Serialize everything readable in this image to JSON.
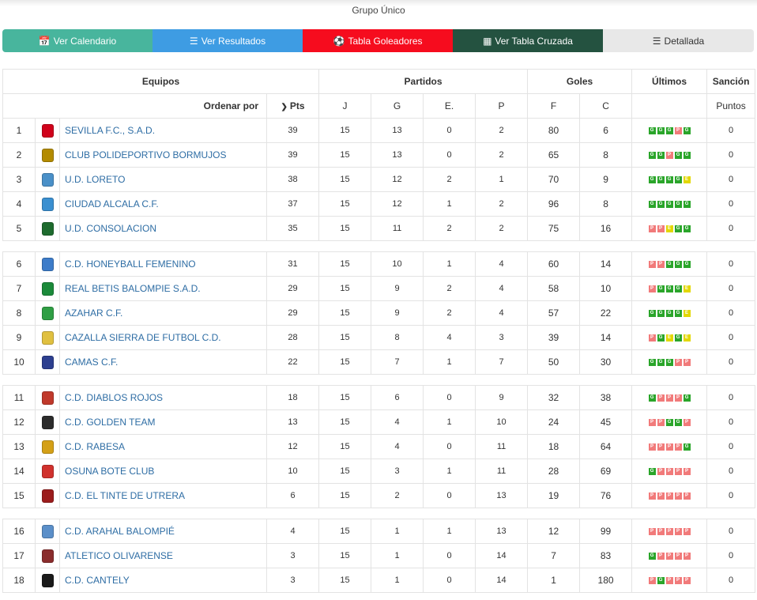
{
  "group_title": "Grupo Único",
  "tabs": [
    {
      "label": "Ver Calendario",
      "icon": "calendar-icon"
    },
    {
      "label": "Ver Resultados",
      "icon": "list-icon"
    },
    {
      "label": "Tabla Goleadores",
      "icon": "soccer-ball-icon"
    },
    {
      "label": "Ver Tabla Cruzada",
      "icon": "table-icon"
    },
    {
      "label": "Detallada",
      "icon": "detail-list-icon"
    }
  ],
  "headers": {
    "equipos": "Equipos",
    "partidos": "Partidos",
    "goles": "Goles",
    "ultimos": "Últimos",
    "sancion": "Sanción",
    "ordenar_por": "Ordenar por",
    "pts": "Pts",
    "j": "J",
    "g": "G",
    "e": "E.",
    "p": "P",
    "f": "F",
    "c": "C",
    "puntos": "Puntos"
  },
  "colors": {
    "win": "#2aa52a",
    "loss": "#f17a7a",
    "draw": "#e3d700",
    "link": "#2e6da4"
  },
  "groups": [
    [
      {
        "pos": "1",
        "team": "SEVILLA F.C., S.A.D.",
        "crest_color": "#d0021b",
        "pts": "39",
        "j": "15",
        "g": "13",
        "e": "0",
        "p": "2",
        "f": "80",
        "c": "6",
        "last": [
          "G",
          "G",
          "G",
          "P",
          "G"
        ],
        "sancion": "0"
      },
      {
        "pos": "2",
        "team": "CLUB POLIDEPORTIVO BORMUJOS",
        "crest_color": "#b38b00",
        "pts": "39",
        "j": "15",
        "g": "13",
        "e": "0",
        "p": "2",
        "f": "65",
        "c": "8",
        "last": [
          "G",
          "G",
          "P",
          "G",
          "G"
        ],
        "sancion": "0"
      },
      {
        "pos": "3",
        "team": "U.D. LORETO",
        "crest_color": "#4a90c8",
        "pts": "38",
        "j": "15",
        "g": "12",
        "e": "2",
        "p": "1",
        "f": "70",
        "c": "9",
        "last": [
          "G",
          "G",
          "G",
          "G",
          "E"
        ],
        "sancion": "0"
      },
      {
        "pos": "4",
        "team": "CIUDAD ALCALA C.F.",
        "crest_color": "#3a8fd0",
        "pts": "37",
        "j": "15",
        "g": "12",
        "e": "1",
        "p": "2",
        "f": "96",
        "c": "8",
        "last": [
          "G",
          "G",
          "G",
          "G",
          "G"
        ],
        "sancion": "0"
      },
      {
        "pos": "5",
        "team": "U.D. CONSOLACION",
        "crest_color": "#1e6b2e",
        "pts": "35",
        "j": "15",
        "g": "11",
        "e": "2",
        "p": "2",
        "f": "75",
        "c": "16",
        "last": [
          "P",
          "P",
          "E",
          "G",
          "G"
        ],
        "sancion": "0"
      }
    ],
    [
      {
        "pos": "6",
        "team": "C.D. HONEYBALL FEMENINO",
        "crest_color": "#3d7cc9",
        "pts": "31",
        "j": "15",
        "g": "10",
        "e": "1",
        "p": "4",
        "f": "60",
        "c": "14",
        "last": [
          "P",
          "P",
          "G",
          "G",
          "G"
        ],
        "sancion": "0"
      },
      {
        "pos": "7",
        "team": "REAL BETIS BALOMPIE S.A.D.",
        "crest_color": "#1b8a3a",
        "pts": "29",
        "j": "15",
        "g": "9",
        "e": "2",
        "p": "4",
        "f": "58",
        "c": "10",
        "last": [
          "P",
          "G",
          "G",
          "G",
          "E"
        ],
        "sancion": "0"
      },
      {
        "pos": "8",
        "team": "AZAHAR C.F.",
        "crest_color": "#2f9e44",
        "pts": "29",
        "j": "15",
        "g": "9",
        "e": "2",
        "p": "4",
        "f": "57",
        "c": "22",
        "last": [
          "G",
          "G",
          "G",
          "G",
          "E"
        ],
        "sancion": "0"
      },
      {
        "pos": "9",
        "team": "CAZALLA SIERRA DE FUTBOL C.D.",
        "crest_color": "#e0c040",
        "pts": "28",
        "j": "15",
        "g": "8",
        "e": "4",
        "p": "3",
        "f": "39",
        "c": "14",
        "last": [
          "P",
          "G",
          "E",
          "G",
          "E"
        ],
        "sancion": "0"
      },
      {
        "pos": "10",
        "team": "CAMAS C.F.",
        "crest_color": "#2d3f8f",
        "pts": "22",
        "j": "15",
        "g": "7",
        "e": "1",
        "p": "7",
        "f": "50",
        "c": "30",
        "last": [
          "G",
          "G",
          "G",
          "P",
          "P"
        ],
        "sancion": "0"
      }
    ],
    [
      {
        "pos": "11",
        "team": "C.D. DIABLOS ROJOS",
        "crest_color": "#c0392b",
        "pts": "18",
        "j": "15",
        "g": "6",
        "e": "0",
        "p": "9",
        "f": "32",
        "c": "38",
        "last": [
          "G",
          "P",
          "P",
          "P",
          "G"
        ],
        "sancion": "0"
      },
      {
        "pos": "12",
        "team": "C.D. GOLDEN TEAM",
        "crest_color": "#2b2b2b",
        "pts": "13",
        "j": "15",
        "g": "4",
        "e": "1",
        "p": "10",
        "f": "24",
        "c": "45",
        "last": [
          "P",
          "P",
          "G",
          "G",
          "P"
        ],
        "sancion": "0"
      },
      {
        "pos": "13",
        "team": "C.D. RABESA",
        "crest_color": "#d4a017",
        "pts": "12",
        "j": "15",
        "g": "4",
        "e": "0",
        "p": "11",
        "f": "18",
        "c": "64",
        "last": [
          "P",
          "P",
          "P",
          "P",
          "G"
        ],
        "sancion": "0"
      },
      {
        "pos": "14",
        "team": "OSUNA BOTE CLUB",
        "crest_color": "#d0312d",
        "pts": "10",
        "j": "15",
        "g": "3",
        "e": "1",
        "p": "11",
        "f": "28",
        "c": "69",
        "last": [
          "G",
          "P",
          "P",
          "P",
          "P"
        ],
        "sancion": "0"
      },
      {
        "pos": "15",
        "team": "C.D. EL TINTE DE UTRERA",
        "crest_color": "#9b1c1c",
        "pts": "6",
        "j": "15",
        "g": "2",
        "e": "0",
        "p": "13",
        "f": "19",
        "c": "76",
        "last": [
          "P",
          "P",
          "P",
          "P",
          "P"
        ],
        "sancion": "0"
      }
    ],
    [
      {
        "pos": "16",
        "team": "C.D. ARAHAL BALOMPIÉ",
        "crest_color": "#5b8fc9",
        "pts": "4",
        "j": "15",
        "g": "1",
        "e": "1",
        "p": "13",
        "f": "12",
        "c": "99",
        "last": [
          "P",
          "P",
          "P",
          "P",
          "P"
        ],
        "sancion": "0"
      },
      {
        "pos": "17",
        "team": "ATLETICO OLIVARENSE",
        "crest_color": "#8a2c2c",
        "pts": "3",
        "j": "15",
        "g": "1",
        "e": "0",
        "p": "14",
        "f": "7",
        "c": "83",
        "last": [
          "G",
          "P",
          "P",
          "P",
          "P"
        ],
        "sancion": "0"
      },
      {
        "pos": "18",
        "team": "C.D. CANTELY",
        "crest_color": "#1a1a1a",
        "pts": "3",
        "j": "15",
        "g": "1",
        "e": "0",
        "p": "14",
        "f": "1",
        "c": "180",
        "last": [
          "P",
          "G",
          "P",
          "P",
          "P"
        ],
        "sancion": "0"
      }
    ]
  ]
}
